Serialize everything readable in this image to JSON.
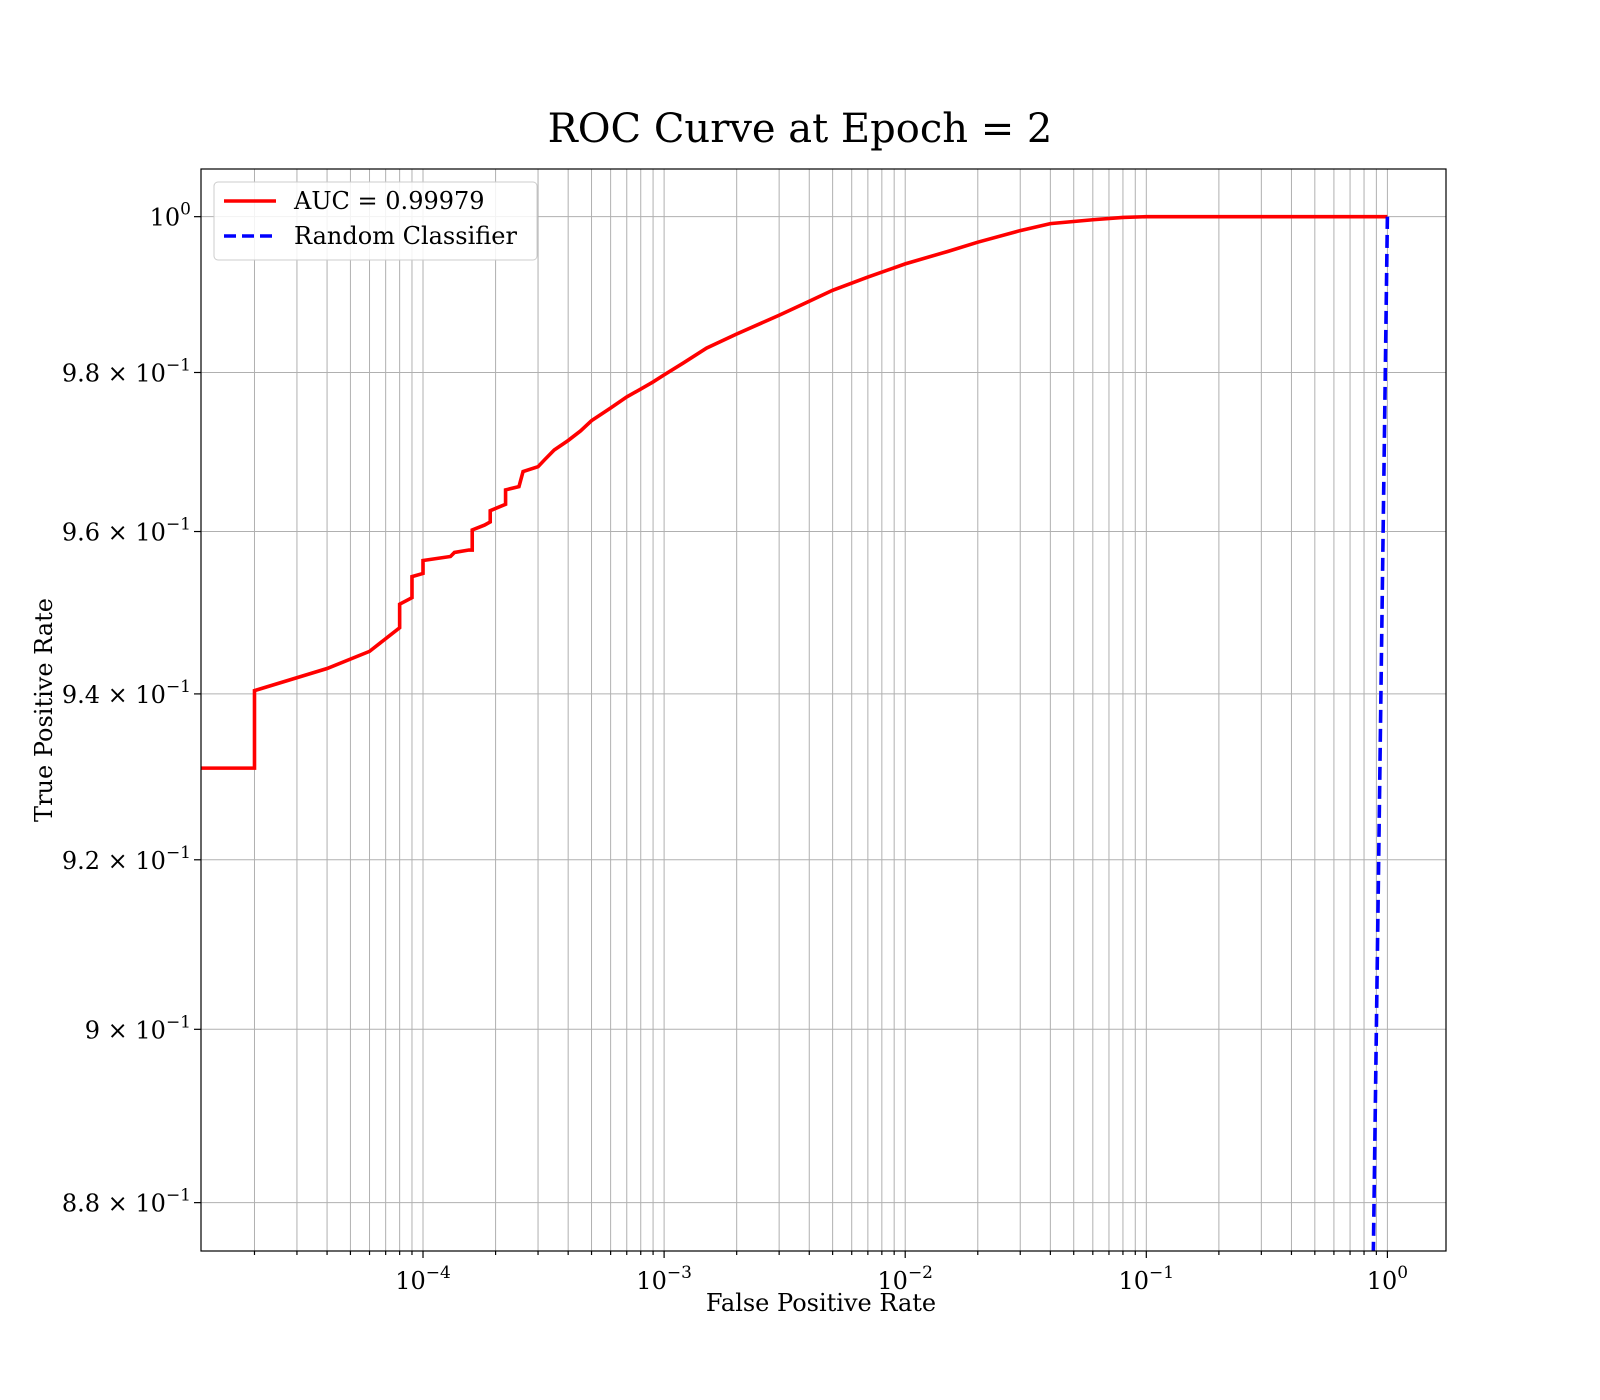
{
  "chart_data": {
    "type": "line",
    "title": "ROC Curve at Epoch = 2",
    "xlabel": "False Positive Rate",
    "ylabel": "True Positive Rate",
    "xscale": "log",
    "yscale": "log",
    "xlim": [
      1.2e-05,
      1.75
    ],
    "ylim": [
      0.8745,
      1.0062
    ],
    "grid": true,
    "legend_position": "upper-left",
    "x_ticks": [
      {
        "value": 0.0001,
        "base": "10",
        "exp": "−4"
      },
      {
        "value": 0.001,
        "base": "10",
        "exp": "−3"
      },
      {
        "value": 0.01,
        "base": "10",
        "exp": "−2"
      },
      {
        "value": 0.1,
        "base": "10",
        "exp": "−1"
      },
      {
        "value": 1,
        "base": "10",
        "exp": "0"
      }
    ],
    "y_ticks": [
      {
        "value": 0.88,
        "base": "8.8 × 10",
        "exp": "−1"
      },
      {
        "value": 0.9,
        "base": "9 × 10",
        "exp": "−1"
      },
      {
        "value": 0.92,
        "base": "9.2 × 10",
        "exp": "−1"
      },
      {
        "value": 0.94,
        "base": "9.4 × 10",
        "exp": "−1"
      },
      {
        "value": 0.96,
        "base": "9.6 × 10",
        "exp": "−1"
      },
      {
        "value": 0.98,
        "base": "9.8 × 10",
        "exp": "−1"
      },
      {
        "value": 1.0,
        "base": "10",
        "exp": "0"
      }
    ],
    "series": [
      {
        "name": "AUC = 0.99979",
        "color": "#ff0000",
        "style": "solid",
        "x": [
          1e-05,
          2e-05,
          2e-05,
          4e-05,
          6e-05,
          8e-05,
          8e-05,
          9e-05,
          9e-05,
          0.0001,
          0.0001,
          0.00013,
          0.000135,
          0.000155,
          0.00016,
          0.00016,
          0.00018,
          0.00019,
          0.00019,
          0.00022,
          0.00022,
          0.00025,
          0.00026,
          0.0003,
          0.00032,
          0.00035,
          0.0004,
          0.00045,
          0.0005,
          0.0006,
          0.0007,
          0.0008,
          0.0009,
          0.001,
          0.0012,
          0.0015,
          0.002,
          0.003,
          0.004,
          0.005,
          0.007,
          0.01,
          0.015,
          0.02,
          0.03,
          0.04,
          0.06,
          0.08,
          0.1,
          1
        ],
        "y": [
          0.931,
          0.931,
          0.9404,
          0.9431,
          0.9452,
          0.9481,
          0.951,
          0.9518,
          0.9544,
          0.9548,
          0.9564,
          0.9569,
          0.9574,
          0.9577,
          0.9577,
          0.9602,
          0.9608,
          0.9612,
          0.9626,
          0.9634,
          0.9652,
          0.9656,
          0.9675,
          0.9681,
          0.969,
          0.9702,
          0.9714,
          0.9726,
          0.9739,
          0.9755,
          0.9769,
          0.9779,
          0.9788,
          0.9797,
          0.9812,
          0.9831,
          0.9849,
          0.9873,
          0.9891,
          0.9905,
          0.9922,
          0.9939,
          0.9955,
          0.9967,
          0.9982,
          0.9991,
          0.9996,
          0.9999,
          1.0,
          1.0
        ]
      },
      {
        "name": "Random Classifier",
        "color": "#0000ff",
        "style": "dashed",
        "x": [
          0,
          1
        ],
        "y": [
          0,
          1
        ]
      }
    ]
  }
}
